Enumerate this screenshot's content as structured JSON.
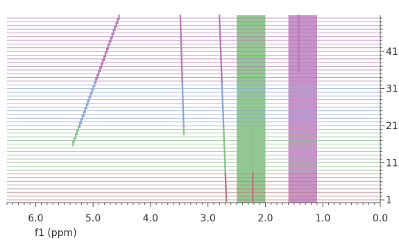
{
  "chart_data": {
    "type": "stacked-spectra",
    "xlabel": "f1 (ppm)",
    "x_reversed": true,
    "xlim": [
      6.5,
      0.0
    ],
    "x_ticks": [
      "6.0",
      "5.0",
      "4.0",
      "3.0",
      "2.0",
      "1.0",
      "0.0"
    ],
    "x_tick_values": [
      6.0,
      5.0,
      4.0,
      3.0,
      2.0,
      1.0,
      0.0
    ],
    "y_ticks": [
      "41",
      "31",
      "21",
      "11",
      "1"
    ],
    "y_tick_values": [
      41,
      31,
      21,
      11,
      1
    ],
    "spectrum_count": 50,
    "color_bands": [
      {
        "from": 1,
        "to": 8,
        "color": "#b57a7a"
      },
      {
        "from": 9,
        "to": 20,
        "color": "#8fbf8f"
      },
      {
        "from": 21,
        "to": 32,
        "color": "#8ea6d6"
      },
      {
        "from": 33,
        "to": 50,
        "color": "#b57ab5"
      }
    ],
    "highlight_regions": [
      {
        "ppm_from": 2.5,
        "ppm_to": 2.0,
        "color": "#3a9a3a"
      },
      {
        "ppm_from": 1.6,
        "ppm_to": 1.1,
        "color": "#9a3a9a"
      }
    ],
    "peaks": [
      {
        "ppm_start": 5.35,
        "ppm_end": 4.55,
        "spectrum_start": 16,
        "spectrum_end": 50
      },
      {
        "ppm_start": 3.42,
        "ppm_end": 3.48,
        "spectrum_start": 19,
        "spectrum_end": 50
      },
      {
        "ppm_start": 2.68,
        "ppm_end": 2.8,
        "spectrum_start": 1,
        "spectrum_end": 50
      },
      {
        "ppm_start": 2.22,
        "ppm_end": 2.22,
        "spectrum_start": 1,
        "spectrum_end": 20
      },
      {
        "ppm_start": 1.42,
        "ppm_end": 1.42,
        "spectrum_start": 36,
        "spectrum_end": 50
      }
    ]
  }
}
